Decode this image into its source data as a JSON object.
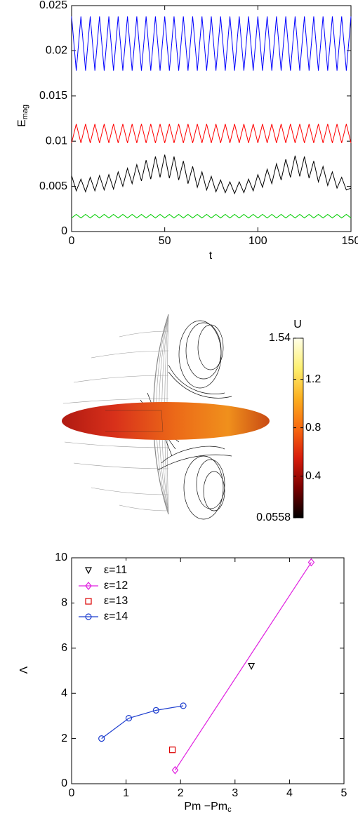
{
  "chart_data": [
    {
      "type": "line",
      "xlabel": "t",
      "ylabel": "E",
      "ylabel_subscript": "mag",
      "xlim": [
        0,
        150
      ],
      "ylim": [
        0,
        0.025
      ],
      "xticks": [
        0,
        50,
        100,
        150
      ],
      "yticks": [
        0,
        0.005,
        0.01,
        0.015,
        0.02,
        0.025
      ],
      "grid": false,
      "x": [
        0,
        2.5,
        5,
        7.5,
        10,
        12.5,
        15,
        17.5,
        20,
        22.5,
        25,
        27.5,
        30,
        32.5,
        35,
        37.5,
        40,
        42.5,
        45,
        47.5,
        50,
        52.5,
        55,
        57.5,
        60,
        62.5,
        65,
        67.5,
        70,
        72.5,
        75,
        77.5,
        80,
        82.5,
        85,
        87.5,
        90,
        92.5,
        95,
        97.5,
        100,
        102.5,
        105,
        107.5,
        110,
        112.5,
        115,
        117.5,
        120,
        122.5,
        125,
        127.5,
        130,
        132.5,
        135,
        137.5,
        140,
        142.5,
        145,
        147.5,
        150
      ],
      "series": [
        {
          "color": "#0000ff",
          "values": [
            0.0238,
            0.0178,
            0.0238,
            0.0178,
            0.0238,
            0.0178,
            0.0238,
            0.0178,
            0.0238,
            0.0178,
            0.0238,
            0.0178,
            0.0238,
            0.0178,
            0.0238,
            0.0178,
            0.0238,
            0.0178,
            0.0238,
            0.0178,
            0.0238,
            0.0178,
            0.0238,
            0.0178,
            0.0238,
            0.0178,
            0.0238,
            0.0178,
            0.0238,
            0.0178,
            0.0238,
            0.0178,
            0.0238,
            0.0178,
            0.0238,
            0.0178,
            0.0238,
            0.0178,
            0.0238,
            0.0178,
            0.0238,
            0.0178,
            0.0238,
            0.0178,
            0.0238,
            0.0178,
            0.0238,
            0.0178,
            0.0238,
            0.0178,
            0.0238,
            0.0178,
            0.0238,
            0.0178,
            0.0238,
            0.0178,
            0.0238,
            0.0178,
            0.0238,
            0.0178,
            0.0238
          ]
        },
        {
          "color": "#ff0000",
          "values": [
            0.0098,
            0.0119,
            0.0098,
            0.0119,
            0.0098,
            0.0119,
            0.0098,
            0.0119,
            0.0098,
            0.0119,
            0.0098,
            0.0119,
            0.0098,
            0.0119,
            0.0098,
            0.0119,
            0.0098,
            0.0119,
            0.0098,
            0.0119,
            0.0098,
            0.0119,
            0.0098,
            0.0119,
            0.0098,
            0.0119,
            0.0098,
            0.0119,
            0.0098,
            0.0119,
            0.0098,
            0.0119,
            0.0098,
            0.0119,
            0.0098,
            0.0119,
            0.0098,
            0.0119,
            0.0098,
            0.0119,
            0.0098,
            0.0119,
            0.0098,
            0.0119,
            0.0098,
            0.0119,
            0.0098,
            0.0119,
            0.0098,
            0.0119,
            0.0098,
            0.0119,
            0.0098,
            0.0119,
            0.0098,
            0.0119,
            0.0098,
            0.0119,
            0.0098,
            0.0119,
            0.0098
          ]
        },
        {
          "color": "#000000",
          "values": [
            0.0062,
            0.0045,
            0.0058,
            0.0044,
            0.006,
            0.0045,
            0.0062,
            0.0046,
            0.0063,
            0.0047,
            0.0066,
            0.005,
            0.007,
            0.0053,
            0.0074,
            0.0056,
            0.0079,
            0.0058,
            0.0083,
            0.006,
            0.0085,
            0.0059,
            0.0083,
            0.0057,
            0.0078,
            0.0053,
            0.0072,
            0.0049,
            0.0066,
            0.0046,
            0.0061,
            0.0044,
            0.0057,
            0.0043,
            0.0055,
            0.0042,
            0.0055,
            0.0043,
            0.0058,
            0.0045,
            0.0063,
            0.0049,
            0.0069,
            0.0053,
            0.0075,
            0.0057,
            0.008,
            0.006,
            0.0084,
            0.0061,
            0.0083,
            0.0059,
            0.0078,
            0.0055,
            0.0072,
            0.0051,
            0.0066,
            0.0048,
            0.006,
            0.0046,
            0.0048
          ]
        },
        {
          "color": "#00cc00",
          "values": [
            0.0015,
            0.0019,
            0.0015,
            0.0019,
            0.0015,
            0.0019,
            0.0015,
            0.0019,
            0.0015,
            0.0019,
            0.0015,
            0.0019,
            0.0015,
            0.0019,
            0.0015,
            0.0019,
            0.0015,
            0.0019,
            0.0015,
            0.0019,
            0.0015,
            0.0019,
            0.0015,
            0.0019,
            0.0015,
            0.0019,
            0.0015,
            0.0019,
            0.0015,
            0.0019,
            0.0015,
            0.0019,
            0.0015,
            0.0019,
            0.0015,
            0.0019,
            0.0015,
            0.0019,
            0.0015,
            0.0019,
            0.0015,
            0.0019,
            0.0015,
            0.0019,
            0.0015,
            0.0019,
            0.0015,
            0.0019,
            0.0015,
            0.0019,
            0.0015,
            0.0019,
            0.0015,
            0.0019,
            0.0015,
            0.0019,
            0.0015,
            0.0019,
            0.0015,
            0.0019,
            0.0015
          ]
        }
      ]
    },
    {
      "type": "colorbar",
      "label": "U",
      "ylim": [
        0.0558,
        1.54
      ],
      "yticks": [
        1.54,
        1.2,
        0.8,
        0.4,
        0.0558
      ],
      "colormap": [
        "#000000",
        "#7a0000",
        "#d81c0c",
        "#f86a10",
        "#fbb020",
        "#fdf070",
        "#ffffe8"
      ]
    },
    {
      "type": "scatter",
      "xlabel": "Pm −Pm",
      "xlabel_subscript": "c",
      "ylabel": "Λ",
      "xlim": [
        0,
        5
      ],
      "ylim": [
        0,
        10
      ],
      "xticks": [
        0,
        1,
        2,
        3,
        4,
        5
      ],
      "yticks": [
        0,
        2,
        4,
        6,
        8,
        10
      ],
      "grid": false,
      "legend": "upper left",
      "series": [
        {
          "name": "ε=11",
          "color": "#000000",
          "marker": "v",
          "line": false,
          "x": [
            3.3
          ],
          "values": [
            5.2
          ]
        },
        {
          "name": "ε=12",
          "color": "#e020e0",
          "marker": "d",
          "line": true,
          "x": [
            1.9,
            4.4
          ],
          "values": [
            0.6,
            9.8
          ]
        },
        {
          "name": "ε=13",
          "color": "#dd0000",
          "marker": "s",
          "line": false,
          "x": [
            1.85
          ],
          "values": [
            1.5
          ]
        },
        {
          "name": "ε=14",
          "color": "#1f3fcf",
          "marker": "o",
          "line": true,
          "x": [
            0.55,
            1.05,
            1.55,
            2.05
          ],
          "values": [
            2.0,
            2.9,
            3.25,
            3.45
          ]
        }
      ]
    }
  ]
}
